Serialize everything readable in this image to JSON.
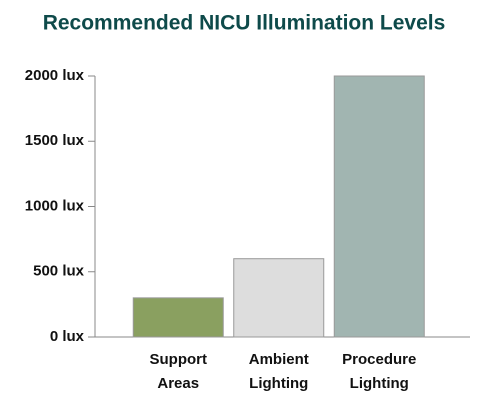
{
  "chart_data": {
    "type": "bar",
    "title": "Recommended NICU Illumination Levels",
    "categories": [
      "Support Areas",
      "Ambient Lighting",
      "Procedure Lighting"
    ],
    "values": [
      300,
      600,
      2000
    ],
    "colors": [
      "#8aa060",
      "#dddddd",
      "#a1b5b1"
    ],
    "ylim": [
      0,
      2000
    ],
    "yticks": [
      {
        "value": 0,
        "label": "0 lux"
      },
      {
        "value": 500,
        "label": "500 lux"
      },
      {
        "value": 1000,
        "label": "1000 lux"
      },
      {
        "value": 1500,
        "label": "1500 lux"
      },
      {
        "value": 2000,
        "label": "2000 lux"
      }
    ],
    "grid": false
  }
}
